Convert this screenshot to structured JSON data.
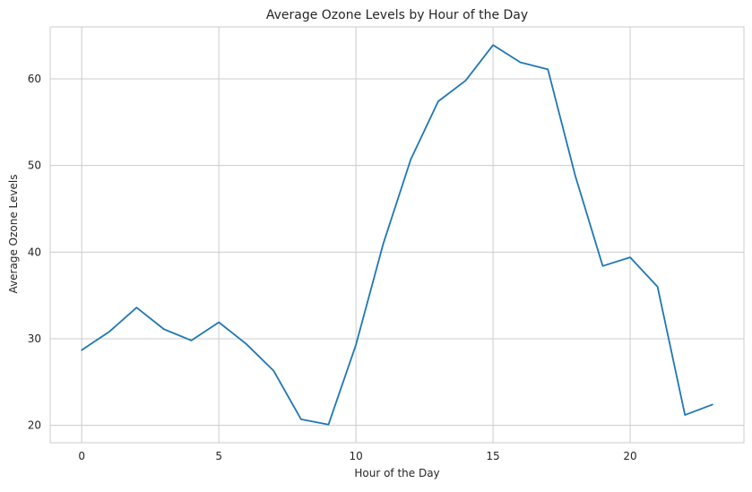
{
  "chart_data": {
    "type": "line",
    "title": "Average Ozone Levels by Hour of the Day",
    "xlabel": "Hour of the Day",
    "ylabel": "Average Ozone Levels",
    "xlim": [
      -1.15,
      24.15
    ],
    "ylim": [
      18.0,
      66.0
    ],
    "x_ticks": [
      0,
      5,
      10,
      15,
      20
    ],
    "y_ticks": [
      20,
      30,
      40,
      50,
      60
    ],
    "grid": true,
    "line_color": "#1f77b4",
    "series": [
      {
        "x": [
          0,
          1,
          2,
          3,
          4,
          5,
          6,
          7,
          8,
          9,
          10,
          11,
          12,
          13,
          14,
          15,
          16,
          17,
          18,
          19,
          20,
          21,
          22,
          23
        ],
        "y": [
          28.7,
          30.8,
          33.6,
          31.1,
          29.8,
          31.9,
          29.4,
          26.3,
          20.7,
          20.1,
          29.3,
          41.0,
          50.7,
          57.4,
          59.8,
          63.9,
          61.9,
          61.1,
          48.8,
          38.4,
          39.4,
          36.0,
          21.2,
          22.4
        ]
      }
    ]
  }
}
